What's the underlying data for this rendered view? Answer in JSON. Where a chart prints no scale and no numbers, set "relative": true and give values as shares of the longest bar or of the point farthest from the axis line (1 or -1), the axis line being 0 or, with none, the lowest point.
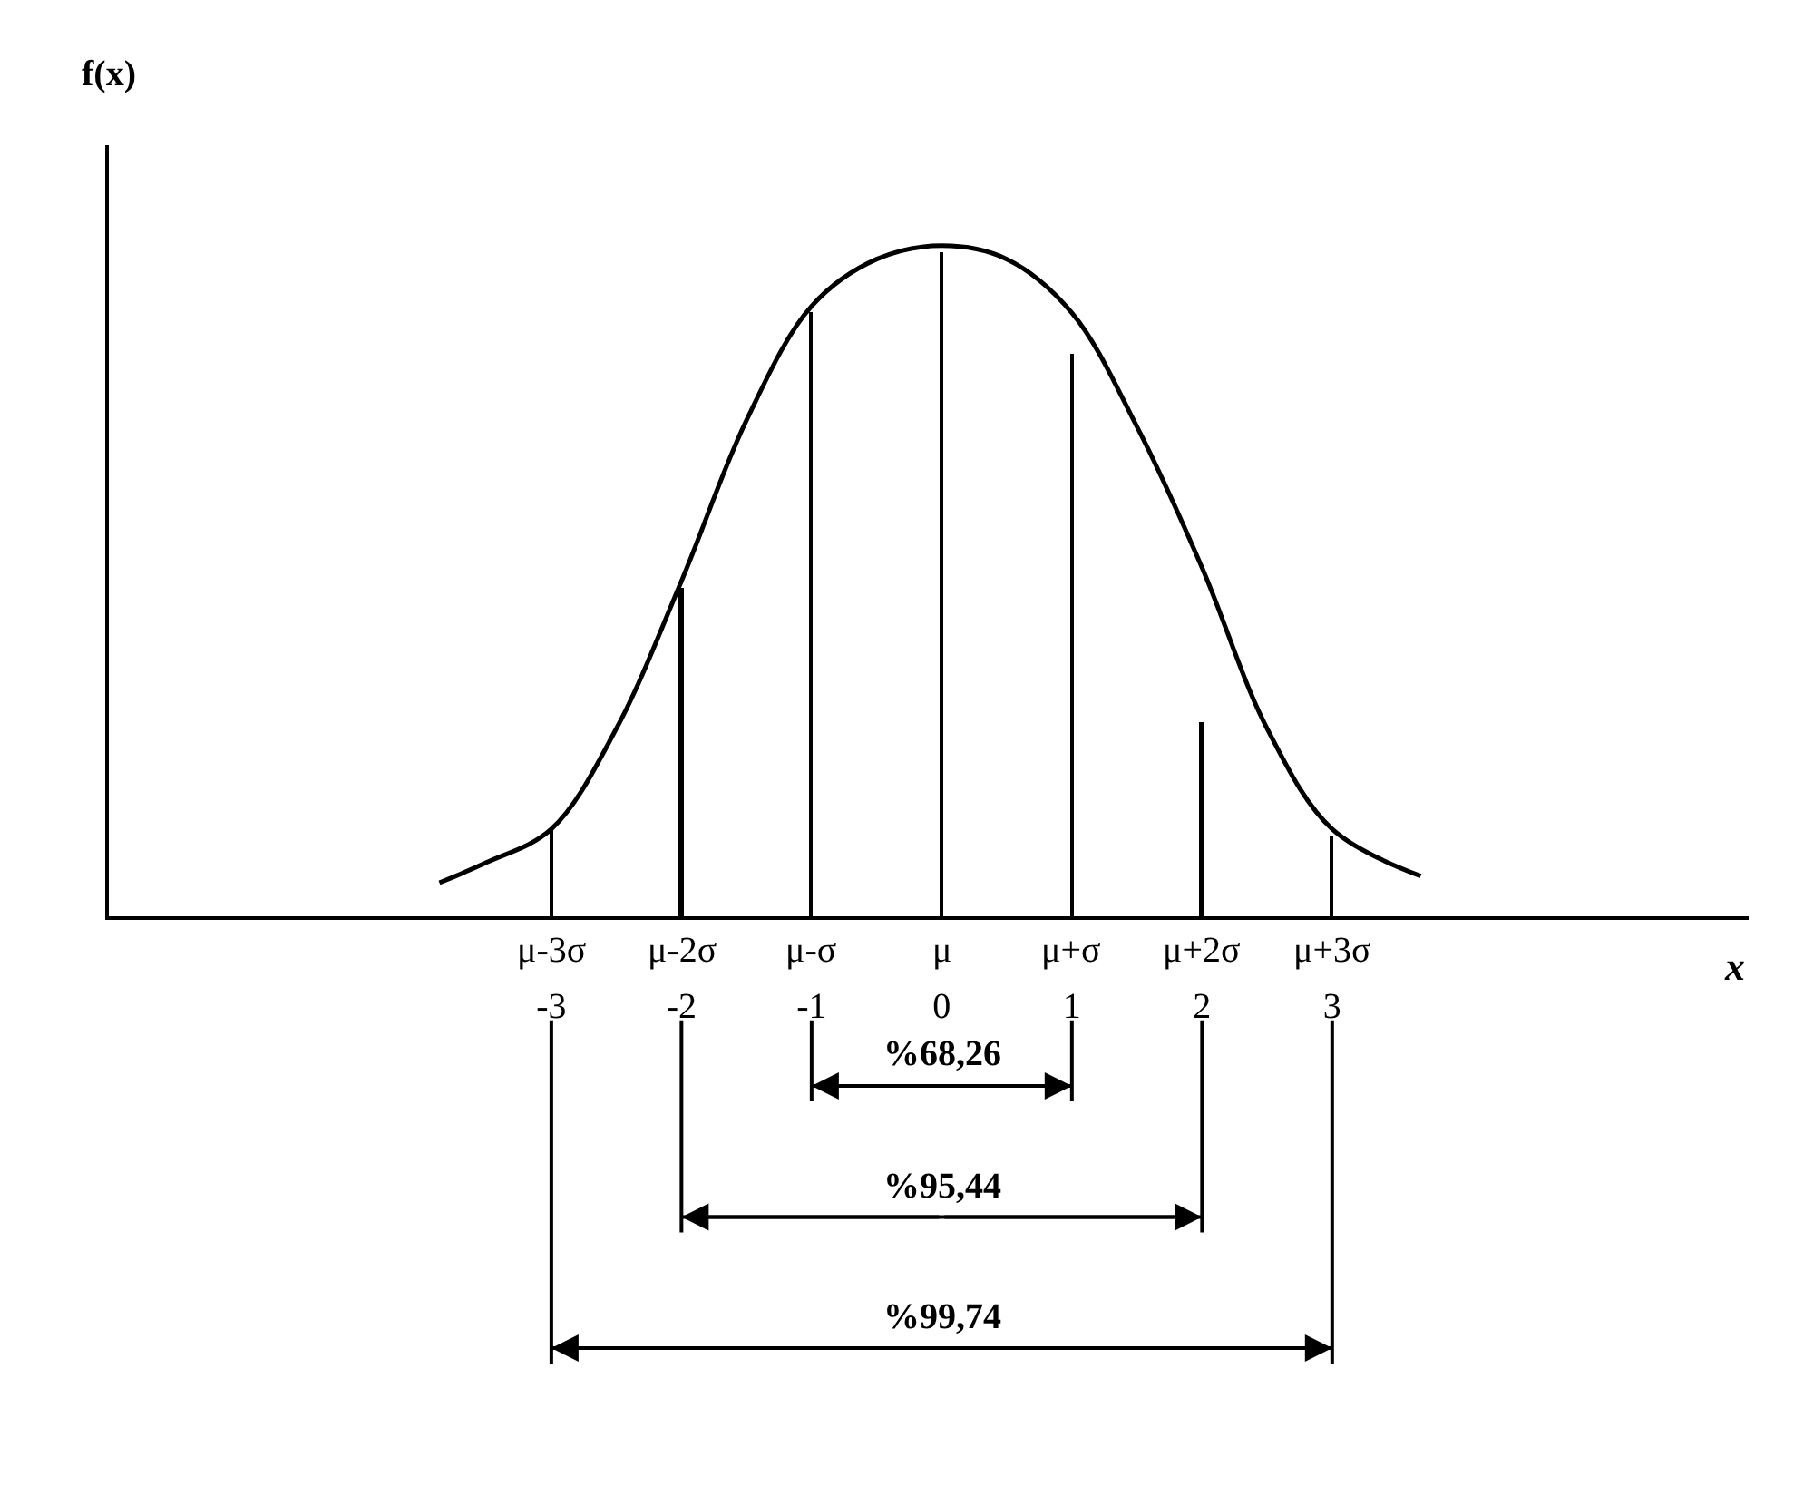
{
  "chart_data": {
    "type": "line",
    "relative": true,
    "ylabel": "f(x)",
    "xlabel": "x",
    "xlim": [
      -6.4,
      6.2
    ],
    "xticks": [
      -3,
      -2,
      -1,
      0,
      1,
      2,
      3
    ],
    "series": [
      {
        "color": "#000000",
        "x": [
          -3.86,
          -3.5,
          -3,
          -2.5,
          -2,
          -1.5,
          -1,
          -0.5,
          0,
          0.5,
          1,
          1.5,
          2,
          2.5,
          3,
          3.68
        ],
        "values": [
          0.05,
          0.08,
          0.13,
          0.28,
          0.5,
          0.74,
          0.91,
          0.98,
          1.0,
          0.98,
          0.9,
          0.73,
          0.52,
          0.28,
          0.13,
          0.06
        ]
      },
      {
        "type": "bar",
        "color": "#000000",
        "x": [
          -3,
          -2,
          -1,
          0,
          1,
          2,
          3
        ],
        "values": [
          0.13,
          0.49,
          0.9,
          0.99,
          0.84,
          0.29,
          0.12
        ]
      }
    ],
    "annotations": [
      "%68,26",
      "%95,44",
      "%99,74",
      {
        "text": "μ-3σ",
        "x": -3,
        "y": 0
      },
      {
        "text": "μ-2σ",
        "x": -2,
        "y": 0
      },
      {
        "text": "μ-σ",
        "x": -1,
        "y": 0
      },
      {
        "text": "μ",
        "x": 0,
        "y": 0
      },
      {
        "text": "μ+σ",
        "x": 1,
        "y": 0
      },
      {
        "text": "μ+2σ",
        "x": 2,
        "y": 0
      },
      {
        "text": "μ+3σ",
        "x": 3,
        "y": 0
      }
    ],
    "marker": "none",
    "line_style": "solid"
  }
}
